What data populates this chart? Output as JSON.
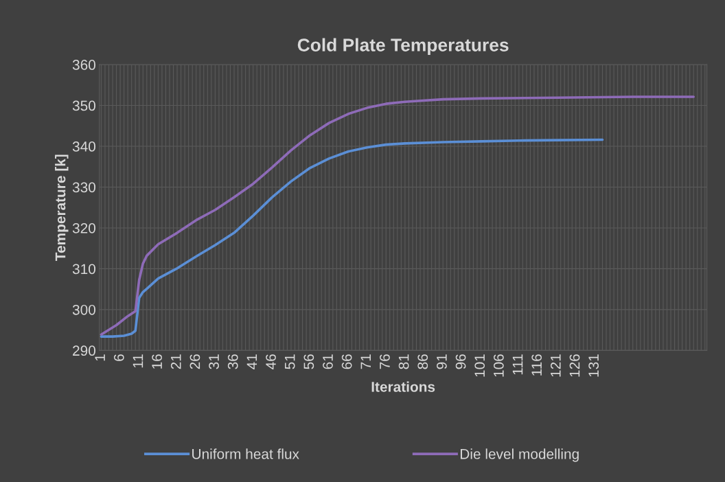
{
  "chart_data": {
    "type": "line",
    "title": "Cold Plate Temperatures",
    "xlabel": "Iterations",
    "ylabel": "Temperature [k]",
    "xlim": [
      0.5,
      160.5
    ],
    "ylim": [
      290,
      360
    ],
    "yticks": [
      290,
      300,
      310,
      320,
      330,
      340,
      350,
      360
    ],
    "xticks": [
      1,
      {
        "value": 2,
        "label": null
      },
      {
        "value": 3,
        "label": null
      },
      {
        "value": 4,
        "label": null
      },
      {
        "value": 5,
        "label": null
      },
      6,
      {
        "value": 7,
        "label": null
      },
      {
        "value": 8,
        "label": null
      },
      {
        "value": 9,
        "label": null
      },
      {
        "value": 10,
        "label": null
      },
      11,
      {
        "value": 12,
        "label": null
      },
      {
        "value": 13,
        "label": null
      },
      {
        "value": 14,
        "label": null
      },
      {
        "value": 15,
        "label": null
      },
      16,
      {
        "value": 17,
        "label": null
      },
      {
        "value": 18,
        "label": null
      },
      {
        "value": 19,
        "label": null
      },
      {
        "value": 20,
        "label": null
      },
      21,
      {
        "value": 22,
        "label": null
      },
      {
        "value": 23,
        "label": null
      },
      {
        "value": 24,
        "label": null
      },
      {
        "value": 25,
        "label": null
      },
      26,
      {
        "value": 27,
        "label": null
      },
      {
        "value": 28,
        "label": null
      },
      {
        "value": 29,
        "label": null
      },
      {
        "value": 30,
        "label": null
      },
      31,
      {
        "value": 32,
        "label": null
      },
      {
        "value": 33,
        "label": null
      },
      {
        "value": 34,
        "label": null
      },
      {
        "value": 35,
        "label": null
      },
      36,
      {
        "value": 37,
        "label": null
      },
      {
        "value": 38,
        "label": null
      },
      {
        "value": 39,
        "label": null
      },
      {
        "value": 40,
        "label": null
      },
      41,
      {
        "value": 42,
        "label": null
      },
      {
        "value": 43,
        "label": null
      },
      {
        "value": 44,
        "label": null
      },
      {
        "value": 45,
        "label": null
      },
      46,
      {
        "value": 47,
        "label": null
      },
      {
        "value": 48,
        "label": null
      },
      {
        "value": 49,
        "label": null
      },
      {
        "value": 50,
        "label": null
      },
      51,
      {
        "value": 52,
        "label": null
      },
      {
        "value": 53,
        "label": null
      },
      {
        "value": 54,
        "label": null
      },
      {
        "value": 55,
        "label": null
      },
      56,
      {
        "value": 57,
        "label": null
      },
      {
        "value": 58,
        "label": null
      },
      {
        "value": 59,
        "label": null
      },
      {
        "value": 60,
        "label": null
      },
      61,
      {
        "value": 62,
        "label": null
      },
      {
        "value": 63,
        "label": null
      },
      {
        "value": 64,
        "label": null
      },
      {
        "value": 65,
        "label": null
      },
      66,
      {
        "value": 67,
        "label": null
      },
      {
        "value": 68,
        "label": null
      },
      {
        "value": 69,
        "label": null
      },
      {
        "value": 70,
        "label": null
      },
      71,
      {
        "value": 72,
        "label": null
      },
      {
        "value": 73,
        "label": null
      },
      {
        "value": 74,
        "label": null
      },
      {
        "value": 75,
        "label": null
      },
      76,
      {
        "value": 77,
        "label": null
      },
      {
        "value": 78,
        "label": null
      },
      {
        "value": 79,
        "label": null
      },
      {
        "value": 80,
        "label": null
      },
      81,
      {
        "value": 82,
        "label": null
      },
      {
        "value": 83,
        "label": null
      },
      {
        "value": 84,
        "label": null
      },
      {
        "value": 85,
        "label": null
      },
      86,
      {
        "value": 87,
        "label": null
      },
      {
        "value": 88,
        "label": null
      },
      {
        "value": 89,
        "label": null
      },
      {
        "value": 90,
        "label": null
      },
      91,
      {
        "value": 92,
        "label": null
      },
      {
        "value": 93,
        "label": null
      },
      {
        "value": 94,
        "label": null
      },
      {
        "value": 95,
        "label": null
      },
      96,
      {
        "value": 97,
        "label": null
      },
      {
        "value": 98,
        "label": null
      },
      {
        "value": 99,
        "label": null
      },
      {
        "value": 100,
        "label": null
      },
      101,
      {
        "value": 102,
        "label": null
      },
      {
        "value": 103,
        "label": null
      },
      {
        "value": 104,
        "label": null
      },
      {
        "value": 105,
        "label": null
      },
      106,
      {
        "value": 107,
        "label": null
      },
      {
        "value": 108,
        "label": null
      },
      {
        "value": 109,
        "label": null
      },
      {
        "value": 110,
        "label": null
      },
      111,
      {
        "value": 112,
        "label": null
      },
      {
        "value": 113,
        "label": null
      },
      {
        "value": 114,
        "label": null
      },
      {
        "value": 115,
        "label": null
      },
      116,
      {
        "value": 117,
        "label": null
      },
      {
        "value": 118,
        "label": null
      },
      {
        "value": 119,
        "label": null
      },
      {
        "value": 120,
        "label": null
      },
      121,
      {
        "value": 122,
        "label": null
      },
      {
        "value": 123,
        "label": null
      },
      {
        "value": 124,
        "label": null
      },
      {
        "value": 125,
        "label": null
      },
      126,
      {
        "value": 127,
        "label": null
      },
      {
        "value": 128,
        "label": null
      },
      {
        "value": 129,
        "label": null
      },
      {
        "value": 130,
        "label": null
      },
      131,
      {
        "value": 132,
        "label": null
      },
      {
        "value": 133,
        "label": null
      },
      {
        "value": 134,
        "label": null
      },
      {
        "value": 135,
        "label": null
      },
      {
        "value": 136,
        "label": null
      },
      {
        "value": 137,
        "label": null
      },
      {
        "value": 138,
        "label": null
      },
      {
        "value": 139,
        "label": null
      },
      {
        "value": 140,
        "label": null
      },
      {
        "value": 141,
        "label": null
      },
      {
        "value": 142,
        "label": null
      },
      {
        "value": 143,
        "label": null
      },
      {
        "value": 144,
        "label": null
      },
      {
        "value": 145,
        "label": null
      },
      {
        "value": 146,
        "label": null
      },
      {
        "value": 147,
        "label": null
      },
      {
        "value": 148,
        "label": null
      },
      {
        "value": 149,
        "label": null
      },
      {
        "value": 150,
        "label": null
      },
      {
        "value": 151,
        "label": null
      },
      {
        "value": 152,
        "label": null
      },
      {
        "value": 153,
        "label": null
      },
      {
        "value": 154,
        "label": null
      },
      {
        "value": 155,
        "label": null
      },
      {
        "value": 156,
        "label": null
      },
      {
        "value": 157,
        "label": null
      },
      {
        "value": 158,
        "label": null
      },
      {
        "value": 159,
        "label": null
      },
      {
        "value": 160,
        "label": null
      }
    ],
    "grid": true,
    "legend": "bottom",
    "marker": "none",
    "line_style": "solid",
    "series": [
      {
        "name": "Uniform heat flux",
        "color": "#5b8fd6",
        "x": [
          1,
          4,
          7,
          9,
          10,
          11,
          12,
          13,
          16,
          21,
          26,
          31,
          36,
          41,
          46,
          51,
          56,
          61,
          66,
          71,
          76,
          81,
          91,
          101,
          111,
          121,
          133
        ],
        "values": [
          293.4,
          293.4,
          293.6,
          294.1,
          294.8,
          302.9,
          304.3,
          305.1,
          307.6,
          310.1,
          313.0,
          315.8,
          318.8,
          323.0,
          327.5,
          331.4,
          334.7,
          337.0,
          338.7,
          339.7,
          340.4,
          340.7,
          341.0,
          341.2,
          341.4,
          341.5,
          341.6
        ]
      },
      {
        "name": "Die level modelling",
        "color": "#8e6bb8",
        "x": [
          1,
          5,
          8,
          10,
          11,
          12,
          13,
          16,
          21,
          26,
          31,
          36,
          41,
          46,
          51,
          56,
          61,
          66,
          71,
          76,
          81,
          91,
          101,
          121,
          141,
          157
        ],
        "values": [
          293.9,
          296.2,
          298.4,
          299.6,
          307.3,
          311.3,
          313.2,
          316.0,
          318.8,
          321.9,
          324.4,
          327.5,
          330.8,
          334.8,
          339.0,
          342.7,
          345.7,
          347.9,
          349.4,
          350.4,
          350.9,
          351.5,
          351.7,
          351.9,
          352.1,
          352.1
        ]
      }
    ]
  }
}
